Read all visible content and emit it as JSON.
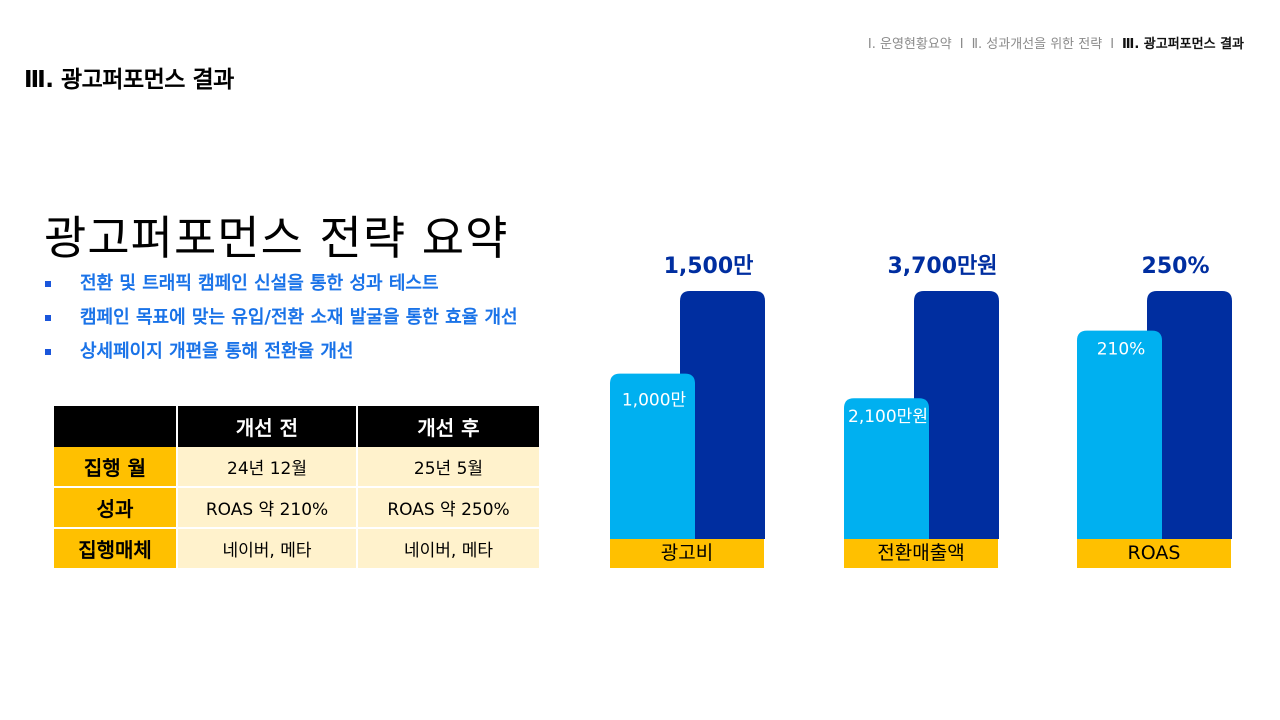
{
  "breadcrumb": {
    "items": [
      "Ⅰ. 운영현황요약",
      "Ⅱ. 성과개선을 위한 전략",
      "Ⅲ. 광고퍼포먼스 결과"
    ],
    "separator": "I"
  },
  "section_title": "Ⅲ. 광고퍼포먼스 결과",
  "summary": {
    "title": "광고퍼포먼스 전략 요약",
    "bullets": [
      "전환 및 트래픽 캠페인 신설을 통한 성과 테스트",
      "캠페인 목표에 맞는 유입/전환 소재 발굴을 통한 효율 개선",
      "상세페이지 개편을 통해 전환율 개선"
    ]
  },
  "table": {
    "headers": [
      "",
      "개선 전",
      "개선 후"
    ],
    "rows": [
      {
        "label": "집행 월",
        "before": "24년 12월",
        "after": "25년 5월"
      },
      {
        "label": "성과",
        "before": "ROAS 약 210%",
        "after": "ROAS 약 250%"
      },
      {
        "label": "집행매체",
        "before": "네이버, 메타",
        "after": "네이버, 메타"
      }
    ]
  },
  "colors": {
    "before_bar": "#00b0f0",
    "after_bar": "#002ea0",
    "category_band": "#ffc000",
    "value_label": "#002ea0",
    "bullet_text": "#1a73e8"
  },
  "chart_data": {
    "type": "bar",
    "charts": [
      {
        "category": "광고비",
        "before": 1000,
        "after": 1500,
        "before_label": "1,000만",
        "after_label": "1,500만"
      },
      {
        "category": "전환매출액",
        "before": 2100,
        "after": 3700,
        "before_label": "2,100만원",
        "after_label": "3,700만원"
      },
      {
        "category": "ROAS",
        "before": 210,
        "after": 250,
        "before_label": "210%",
        "after_label": "250%"
      }
    ]
  }
}
